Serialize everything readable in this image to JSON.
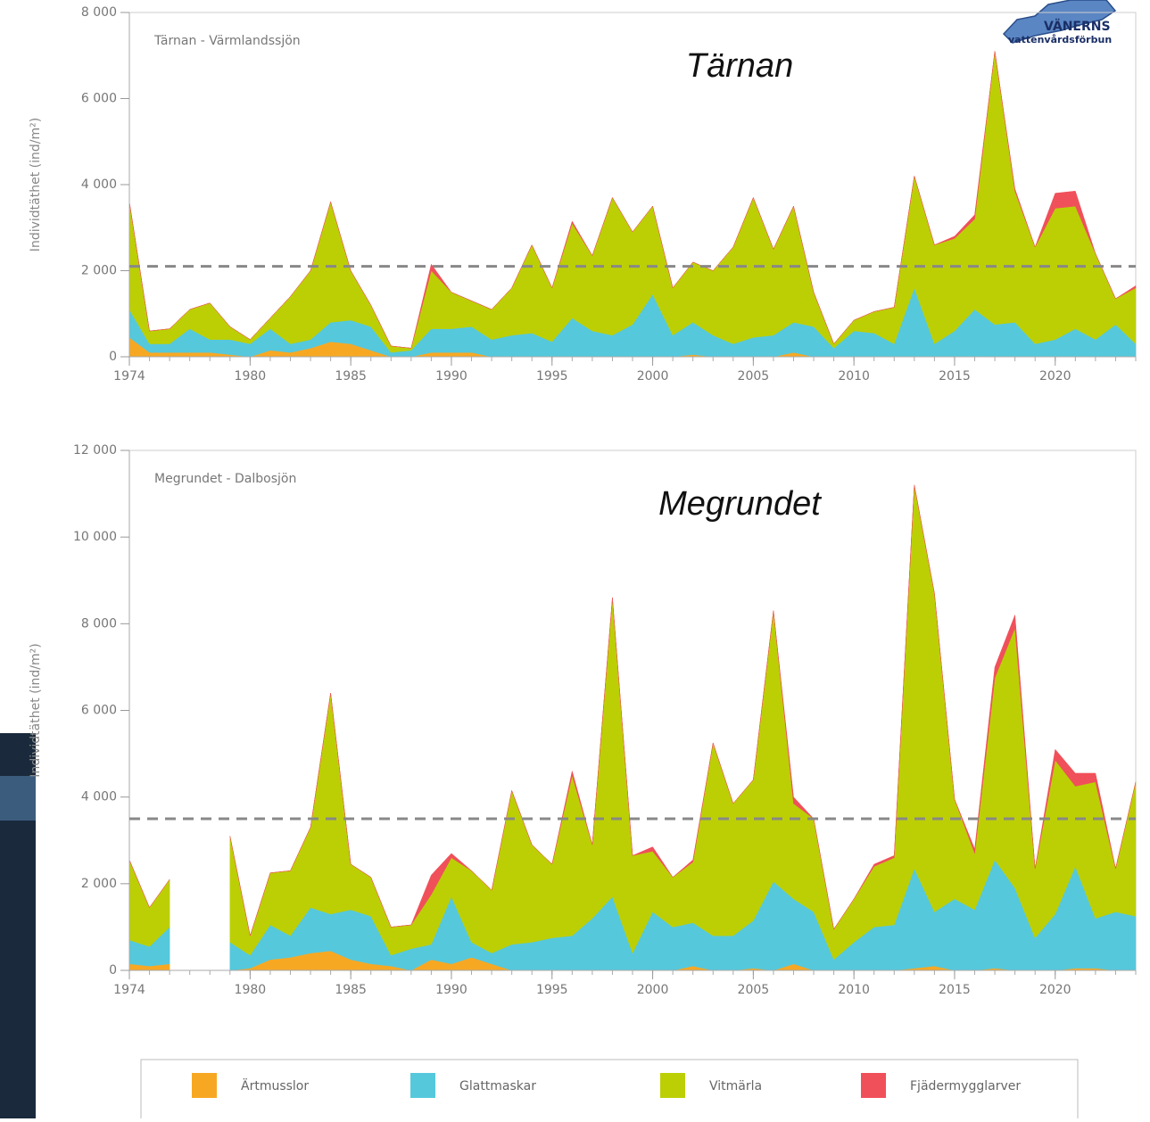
{
  "logo": {
    "line1": "VÄNERNS",
    "line2": "vattenvårdsförbun"
  },
  "chart_data": [
    {
      "type": "stacked-area",
      "subtitle": "Tärnan - Värmlandssjön",
      "annotation": "Tärnan",
      "y_label": "Individtäthet (ind/m²)",
      "x": [
        1974,
        1975,
        1976,
        1977,
        1978,
        1979,
        1980,
        1981,
        1982,
        1983,
        1984,
        1985,
        1986,
        1987,
        1988,
        1989,
        1990,
        1991,
        1992,
        1993,
        1994,
        1995,
        1996,
        1997,
        1998,
        1999,
        2000,
        2001,
        2002,
        2003,
        2004,
        2005,
        2006,
        2007,
        2008,
        2009,
        2010,
        2011,
        2012,
        2013,
        2014,
        2015,
        2016,
        2017,
        2018,
        2019,
        2020,
        2021,
        2022,
        2023,
        2024
      ],
      "xlim": [
        1974,
        2024
      ],
      "xticks": [
        1974,
        1980,
        1985,
        1990,
        1995,
        2000,
        2005,
        2010,
        2015,
        2020
      ],
      "ylim": [
        0,
        8000
      ],
      "yticks": [
        0,
        {
          "value": 2000,
          "label": "2 000"
        },
        {
          "value": 4000,
          "label": "4 000"
        },
        {
          "value": 6000,
          "label": "6 000"
        },
        {
          "value": 8000,
          "label": "8 000"
        }
      ],
      "hlines": [
        2100
      ],
      "series": [
        {
          "name": "Ärtmusslor",
          "color": "#f7a823",
          "values": [
            450,
            100,
            100,
            100,
            100,
            50,
            0,
            150,
            100,
            200,
            350,
            300,
            150,
            0,
            0,
            100,
            100,
            100,
            0,
            0,
            0,
            0,
            0,
            0,
            0,
            0,
            0,
            0,
            50,
            0,
            0,
            0,
            0,
            100,
            0,
            0,
            0,
            0,
            0,
            0,
            0,
            0,
            0,
            0,
            0,
            0,
            0,
            0,
            0,
            0,
            0
          ]
        },
        {
          "name": "Glattmaskar",
          "color": "#55c8dc",
          "values": [
            650,
            200,
            200,
            550,
            300,
            350,
            300,
            500,
            200,
            200,
            450,
            550,
            550,
            100,
            150,
            550,
            550,
            600,
            400,
            500,
            550,
            350,
            900,
            600,
            500,
            750,
            1450,
            500,
            750,
            500,
            300,
            450,
            500,
            700,
            700,
            200,
            600,
            550,
            300,
            1600,
            300,
            600,
            1100,
            750,
            800,
            300,
            400,
            650,
            400,
            750,
            300
          ]
        },
        {
          "name": "Vitmärla",
          "color": "#bccf05",
          "values": [
            2500,
            300,
            350,
            450,
            850,
            300,
            100,
            250,
            1100,
            1600,
            2800,
            1150,
            500,
            150,
            50,
            1350,
            850,
            600,
            700,
            1100,
            2050,
            1250,
            2200,
            1750,
            3200,
            2150,
            2050,
            1100,
            1400,
            1500,
            2250,
            3250,
            2000,
            2700,
            800,
            100,
            250,
            500,
            850,
            2600,
            2300,
            2150,
            2100,
            6350,
            3050,
            2250,
            3050,
            2850,
            2000,
            600,
            1300
          ]
        },
        {
          "name": "Fjädermygglarver",
          "color": "#f0505a",
          "values": [
            0,
            0,
            0,
            0,
            0,
            0,
            0,
            0,
            0,
            0,
            0,
            0,
            0,
            0,
            0,
            150,
            0,
            0,
            0,
            0,
            0,
            0,
            50,
            0,
            0,
            0,
            0,
            0,
            0,
            0,
            0,
            0,
            0,
            0,
            0,
            0,
            0,
            0,
            0,
            0,
            0,
            50,
            100,
            0,
            50,
            0,
            350,
            350,
            0,
            0,
            50
          ]
        }
      ]
    },
    {
      "type": "stacked-area",
      "subtitle": "Megrundet - Dalbosjön",
      "annotation": "Megrundet",
      "y_label": "Individtäthet (ind/m²)",
      "x": [
        1974,
        1975,
        1976,
        1977,
        1978,
        1979,
        1980,
        1981,
        1982,
        1983,
        1984,
        1985,
        1986,
        1987,
        1988,
        1989,
        1990,
        1991,
        1992,
        1993,
        1994,
        1995,
        1996,
        1997,
        1998,
        1999,
        2000,
        2001,
        2002,
        2003,
        2004,
        2005,
        2006,
        2007,
        2008,
        2009,
        2010,
        2011,
        2012,
        2013,
        2014,
        2015,
        2016,
        2017,
        2018,
        2019,
        2020,
        2021,
        2022,
        2023,
        2024
      ],
      "xlim": [
        1974,
        2024
      ],
      "xticks": [
        1974,
        1980,
        1985,
        1990,
        1995,
        2000,
        2005,
        2010,
        2015,
        2020
      ],
      "ylim": [
        0,
        12000
      ],
      "yticks": [
        0,
        {
          "value": 2000,
          "label": "2 000"
        },
        {
          "value": 4000,
          "label": "4 000"
        },
        {
          "value": 6000,
          "label": "6 000"
        },
        {
          "value": 8000,
          "label": "8 000"
        },
        {
          "value": 10000,
          "label": "10 000"
        },
        {
          "value": 12000,
          "label": "12 000"
        }
      ],
      "hlines": [
        3500
      ],
      "series": [
        {
          "color": "#f7a823",
          "values": [
            150,
            100,
            150,
            null,
            null,
            0,
            50,
            250,
            300,
            400,
            450,
            250,
            150,
            100,
            0,
            250,
            150,
            300,
            150,
            0,
            0,
            0,
            0,
            0,
            0,
            0,
            0,
            0,
            100,
            0,
            0,
            50,
            0,
            150,
            0,
            0,
            0,
            0,
            0,
            50,
            100,
            0,
            0,
            50,
            0,
            0,
            0,
            50,
            50,
            0,
            0
          ]
        },
        {
          "color": "#55c8dc",
          "values": [
            550,
            450,
            850,
            null,
            null,
            650,
            300,
            800,
            500,
            1050,
            850,
            1150,
            1100,
            250,
            500,
            350,
            1550,
            350,
            250,
            600,
            650,
            750,
            800,
            1200,
            1700,
            400,
            1350,
            1000,
            1000,
            800,
            800,
            1100,
            2050,
            1500,
            1350,
            250,
            650,
            1000,
            1050,
            2300,
            1250,
            1650,
            1400,
            2500,
            1900,
            750,
            1300,
            2350,
            1150,
            1350,
            1250
          ]
        },
        {
          "color": "#bccf05",
          "values": [
            1850,
            900,
            1100,
            null,
            null,
            2450,
            450,
            1200,
            1500,
            1850,
            5100,
            1050,
            900,
            650,
            550,
            1150,
            900,
            1650,
            1450,
            3550,
            2250,
            1700,
            3700,
            1700,
            6900,
            2250,
            1400,
            1150,
            1400,
            4450,
            3050,
            3250,
            6250,
            2200,
            2150,
            700,
            1000,
            1400,
            1550,
            8850,
            7350,
            2300,
            1300,
            4200,
            6000,
            1600,
            3550,
            1850,
            3150,
            1000,
            3100
          ]
        },
        {
          "color": "#f0505a",
          "values": [
            0,
            0,
            0,
            null,
            null,
            0,
            0,
            0,
            0,
            0,
            0,
            0,
            0,
            0,
            0,
            450,
            100,
            0,
            0,
            0,
            0,
            0,
            100,
            0,
            0,
            0,
            100,
            0,
            50,
            0,
            0,
            0,
            0,
            150,
            0,
            0,
            0,
            50,
            50,
            0,
            0,
            0,
            100,
            250,
            300,
            0,
            250,
            300,
            200,
            0,
            0
          ]
        }
      ]
    }
  ]
}
